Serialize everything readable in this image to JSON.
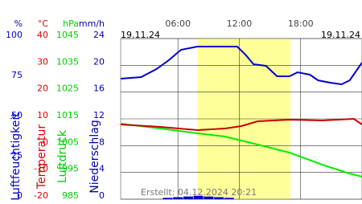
{
  "chart_data": {
    "type": "line",
    "xlim": [
      0.4,
      24
    ],
    "xticks": [
      {
        "value": 6,
        "label": "06:00"
      },
      {
        "value": 12,
        "label": "12:00"
      },
      {
        "value": 18,
        "label": "18:00"
      }
    ],
    "date_left": "19.11.24",
    "date_right": "19.11.24",
    "created": "Erstellt: 04.12.2024 20:21",
    "daylight": [
      7.9,
      17.0
    ],
    "daylight_color": "#ffff99",
    "grid": true,
    "axes": [
      {
        "unit": "%",
        "label": "Luftfeuchtigkeit",
        "color": "#0000cc",
        "ylim": [
          0,
          100
        ],
        "yticks": [
          0,
          25,
          50,
          75,
          100
        ]
      },
      {
        "unit": "°C",
        "label": "Temperatur",
        "color": "#dd0000",
        "ylim": [
          -20,
          40
        ],
        "yticks": [
          -20,
          -10,
          0,
          10,
          20,
          30,
          40
        ]
      },
      {
        "unit": "hPa",
        "label": "Luftdruck",
        "color": "#00cc00",
        "ylim": [
          985,
          1045
        ],
        "yticks": [
          985,
          995,
          1005,
          1015,
          1025,
          1035,
          1045
        ]
      },
      {
        "unit": "mm/h",
        "label": "Niederschlag",
        "color": "#0000aa",
        "ylim": [
          0,
          24
        ],
        "yticks": [
          0,
          4,
          8,
          12,
          16,
          20,
          24
        ]
      }
    ],
    "series": [
      {
        "type": "bar",
        "axis": 3,
        "color": "#0000cc",
        "x": [
          5,
          6,
          7,
          8,
          9,
          10,
          11
        ],
        "values": [
          0.2,
          0.3,
          0.4,
          0.5,
          0.4,
          0.3,
          0.2
        ]
      },
      {
        "type": "line",
        "axis": 0,
        "color": "#0000cc",
        "x": [
          0.4,
          2.4,
          3.9,
          5.1,
          6.3,
          7.9,
          11.8,
          12.6,
          13.4,
          14.6,
          15.7,
          16.9,
          17.7,
          18.9,
          19.7,
          20.9,
          22.0,
          22.8,
          24
        ],
        "values": [
          75,
          76,
          81,
          86.5,
          93,
          95,
          95,
          90,
          84,
          83,
          76.5,
          76.5,
          79,
          77.5,
          74,
          72.5,
          71.5,
          74,
          85
        ]
      },
      {
        "type": "line",
        "axis": 2,
        "color": "#00ee00",
        "x": [
          0.4,
          4.3,
          7.9,
          10.6,
          13.8,
          16.9,
          20.1,
          22.5,
          24
        ],
        "values": [
          1013.2,
          1011.4,
          1009.6,
          1008.4,
          1005.4,
          1002.4,
          997.9,
          994.9,
          993.4
        ]
      },
      {
        "type": "line",
        "axis": 1,
        "color": "#cc0000",
        "x": [
          0.4,
          4.3,
          7.9,
          10.6,
          12.2,
          13.8,
          16.9,
          20.1,
          23.2,
          24
        ],
        "values": [
          7.9,
          7.0,
          5.8,
          6.4,
          7.3,
          9.1,
          9.7,
          9.4,
          10,
          7.9
        ]
      }
    ]
  }
}
